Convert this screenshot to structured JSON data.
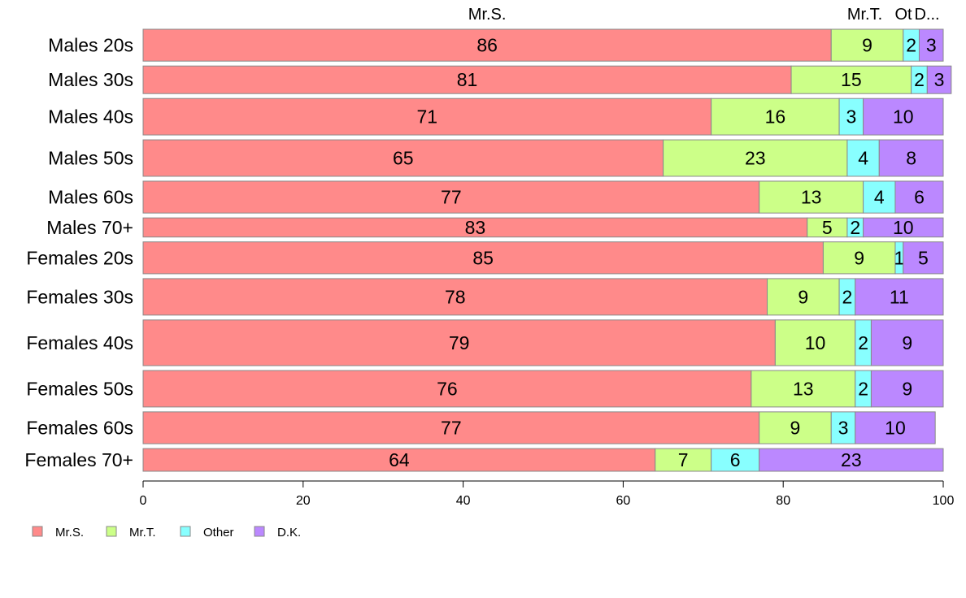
{
  "chart_data": {
    "type": "bar",
    "orientation": "horizontal",
    "stacked": true,
    "categories": [
      "Males 20s",
      "Males 30s",
      "Males 40s",
      "Males 50s",
      "Males 60s",
      "Males 70+",
      "Females 20s",
      "Females 30s",
      "Females 40s",
      "Females 50s",
      "Females 60s",
      "Females 70+"
    ],
    "relative_bar_widths": [
      0.9,
      0.78,
      1.03,
      1.03,
      0.9,
      0.54,
      0.9,
      1.03,
      1.29,
      1.03,
      0.9,
      0.64
    ],
    "series": [
      {
        "name": "Mr.S.",
        "color": "#ff8a8a",
        "values": [
          86,
          81,
          71,
          65,
          77,
          83,
          85,
          78,
          79,
          76,
          77,
          64
        ]
      },
      {
        "name": "Mr.T.",
        "color": "#ccff88",
        "values": [
          9,
          15,
          16,
          23,
          13,
          5,
          9,
          9,
          10,
          13,
          9,
          7
        ]
      },
      {
        "name": "Other",
        "color": "#88ffff",
        "values": [
          2,
          2,
          3,
          4,
          4,
          2,
          1,
          2,
          2,
          2,
          3,
          6
        ]
      },
      {
        "name": "D.K.",
        "color": "#bb88ff",
        "values": [
          3,
          3,
          10,
          8,
          6,
          10,
          5,
          11,
          9,
          9,
          10,
          23
        ]
      }
    ],
    "top_labels": [
      "Mr.S.",
      "Mr.T.",
      "Ot",
      "D..."
    ],
    "xlim": [
      0,
      100
    ],
    "xticks": [
      0,
      20,
      40,
      60,
      80,
      100
    ],
    "grid": false,
    "legend_position": "bottom-left"
  }
}
